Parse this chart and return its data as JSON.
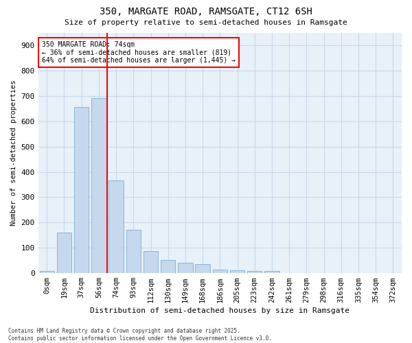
{
  "title1": "350, MARGATE ROAD, RAMSGATE, CT12 6SH",
  "title2": "Size of property relative to semi-detached houses in Ramsgate",
  "xlabel": "Distribution of semi-detached houses by size in Ramsgate",
  "ylabel": "Number of semi-detached properties",
  "categories": [
    "0sqm",
    "19sqm",
    "37sqm",
    "56sqm",
    "74sqm",
    "93sqm",
    "112sqm",
    "130sqm",
    "149sqm",
    "168sqm",
    "186sqm",
    "205sqm",
    "223sqm",
    "242sqm",
    "261sqm",
    "279sqm",
    "298sqm",
    "316sqm",
    "335sqm",
    "354sqm",
    "372sqm"
  ],
  "values": [
    8,
    160,
    655,
    690,
    365,
    170,
    88,
    52,
    42,
    35,
    14,
    12,
    10,
    10,
    0,
    0,
    0,
    0,
    0,
    0,
    0
  ],
  "bar_color": "#c5d8ed",
  "bar_edgecolor": "#7aafd4",
  "grid_color": "#c8d8e8",
  "bg_color": "#e8f0f8",
  "annotation_line_index": 3.5,
  "annotation_text1": "350 MARGATE ROAD: 74sqm",
  "annotation_text2": "← 36% of semi-detached houses are smaller (819)",
  "annotation_text3": "64% of semi-detached houses are larger (1,445) →",
  "footer1": "Contains HM Land Registry data © Crown copyright and database right 2025.",
  "footer2": "Contains public sector information licensed under the Open Government Licence v3.0.",
  "ylim": [
    0,
    950
  ],
  "yticks": [
    0,
    100,
    200,
    300,
    400,
    500,
    600,
    700,
    800,
    900
  ]
}
